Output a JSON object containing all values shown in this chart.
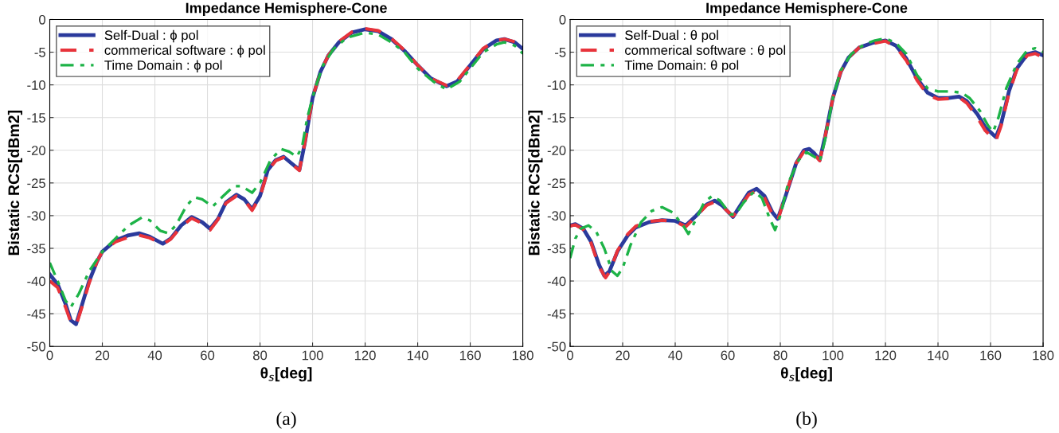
{
  "chart_data": [
    {
      "type": "line",
      "title": "Impedance Hemisphere-Cone",
      "xlabel": "θ$_{s}$[deg]",
      "ylabel": "Bistatic RCS[dBm2]",
      "xlim": [
        0,
        180
      ],
      "ylim": [
        -50,
        0
      ],
      "xticks": [
        0,
        20,
        40,
        60,
        80,
        100,
        120,
        140,
        160,
        180
      ],
      "yticks": [
        -50,
        -45,
        -40,
        -35,
        -30,
        -25,
        -20,
        -15,
        -10,
        -5,
        0
      ],
      "grid": true,
      "legend": "top left",
      "annotations": [
        "(a)"
      ],
      "series": [
        {
          "name": "Self-Dual : ϕ pol",
          "color": "#2b3a9c",
          "line_style": "solid",
          "x": [
            0,
            3,
            6,
            8,
            10,
            12,
            15,
            18,
            20,
            25,
            30,
            34,
            38,
            43,
            46,
            50,
            54,
            58,
            61,
            64,
            67,
            71,
            74,
            77,
            80,
            83,
            86,
            89,
            92,
            95,
            97,
            100,
            103,
            106,
            110,
            115,
            120,
            125,
            130,
            135,
            140,
            145,
            151,
            155,
            160,
            165,
            170,
            173,
            177,
            180
          ],
          "values": [
            -39,
            -40.5,
            -43.5,
            -46,
            -46.6,
            -44,
            -40,
            -37,
            -35.5,
            -33.8,
            -33,
            -32.7,
            -33.2,
            -34.3,
            -33.5,
            -31.5,
            -30.2,
            -31,
            -32,
            -30.5,
            -28,
            -26.8,
            -27.5,
            -29,
            -27,
            -23,
            -21.5,
            -21,
            -22,
            -23,
            -19,
            -12,
            -8,
            -5.5,
            -3.5,
            -2,
            -1.5,
            -1.8,
            -3,
            -4.8,
            -7,
            -9,
            -10.2,
            -9.5,
            -7,
            -4.5,
            -3.2,
            -3,
            -3.5,
            -4.5
          ]
        },
        {
          "name": "commerical software : ϕ pol",
          "color": "#e8333b",
          "line_style": "dashed",
          "x": [
            0,
            3,
            6,
            8,
            10,
            12,
            15,
            18,
            20,
            25,
            30,
            34,
            38,
            43,
            46,
            50,
            54,
            58,
            61,
            64,
            67,
            71,
            74,
            77,
            80,
            83,
            86,
            89,
            92,
            95,
            97,
            100,
            103,
            106,
            110,
            115,
            120,
            125,
            130,
            135,
            140,
            145,
            151,
            155,
            160,
            165,
            170,
            173,
            177,
            180
          ],
          "values": [
            -40,
            -41,
            -44,
            -46.3,
            -46.8,
            -44.3,
            -40.3,
            -37,
            -35.5,
            -34,
            -33.3,
            -33,
            -33.4,
            -34.4,
            -33.6,
            -31.7,
            -30.4,
            -31.2,
            -32.2,
            -30.6,
            -28.1,
            -27,
            -27.6,
            -29.2,
            -27.1,
            -23.1,
            -21.6,
            -21.1,
            -22.1,
            -23.1,
            -19,
            -12,
            -8,
            -5.5,
            -3.4,
            -1.9,
            -1.4,
            -1.7,
            -2.9,
            -4.7,
            -7,
            -9,
            -10.1,
            -9.4,
            -6.9,
            -4.4,
            -3.2,
            -3,
            -3.4,
            -4.4
          ]
        },
        {
          "name": "Time Domain : ϕ pol",
          "color": "#1db347",
          "line_style": "dashdot",
          "x": [
            0,
            3,
            6,
            8,
            11,
            15,
            20,
            25,
            30,
            35,
            38,
            42,
            45,
            48,
            52,
            55,
            58,
            62,
            66,
            70,
            73,
            77,
            80,
            84,
            88,
            91,
            94,
            96,
            98,
            101,
            104,
            108,
            113,
            120,
            125,
            130,
            135,
            140,
            146,
            151,
            156,
            160,
            165,
            170,
            173,
            177,
            180
          ],
          "values": [
            -37.2,
            -40,
            -43,
            -44,
            -42,
            -38.5,
            -35.5,
            -33.5,
            -31.5,
            -30.3,
            -30.7,
            -32.3,
            -32.7,
            -31.5,
            -28.5,
            -27.2,
            -27.5,
            -28.6,
            -27,
            -25.5,
            -25.5,
            -26.5,
            -25,
            -21.5,
            -19.8,
            -20.2,
            -21,
            -19.5,
            -15,
            -10.5,
            -7,
            -4.5,
            -2.8,
            -2,
            -2.3,
            -3.5,
            -5,
            -7.5,
            -9.5,
            -10.7,
            -9.5,
            -7.5,
            -5,
            -3.8,
            -3.5,
            -4,
            -5.2
          ]
        }
      ]
    },
    {
      "type": "line",
      "title": "Impedance Hemisphere-Cone",
      "xlabel": "θ$_{s}$[deg]",
      "ylabel": "Bistatic RCS[dBm2]",
      "xlim": [
        0,
        180
      ],
      "ylim": [
        -50,
        0
      ],
      "xticks": [
        0,
        20,
        40,
        60,
        80,
        100,
        120,
        140,
        160,
        180
      ],
      "yticks": [
        -50,
        -45,
        -40,
        -35,
        -30,
        -25,
        -20,
        -15,
        -10,
        -5,
        0
      ],
      "grid": true,
      "legend": "top left",
      "annotations": [
        "(b)"
      ],
      "series": [
        {
          "name": "Self-Dual : θ pol",
          "color": "#2b3a9c",
          "line_style": "solid",
          "x": [
            0,
            2,
            5,
            8,
            11,
            13,
            15,
            18,
            22,
            25,
            30,
            35,
            40,
            44,
            48,
            52,
            55,
            58,
            62,
            65,
            68,
            71,
            74,
            77,
            79,
            82,
            86,
            89,
            91,
            93,
            95,
            97,
            100,
            103,
            106,
            110,
            115,
            120,
            124,
            128,
            132,
            136,
            140,
            144,
            148,
            151,
            155,
            158,
            162,
            164,
            167,
            170,
            174,
            177,
            180
          ],
          "values": [
            -31.5,
            -31.3,
            -32,
            -34,
            -37.5,
            -39.2,
            -38.5,
            -35.5,
            -33,
            -31.8,
            -31,
            -30.7,
            -30.8,
            -31.5,
            -30,
            -28.3,
            -27.7,
            -28.5,
            -30.2,
            -28.3,
            -26.5,
            -25.9,
            -27,
            -29.5,
            -30.5,
            -27,
            -22,
            -20,
            -19.8,
            -20.5,
            -21.5,
            -18,
            -12,
            -8,
            -5.8,
            -4.3,
            -3.6,
            -3.2,
            -4,
            -6,
            -9,
            -11.2,
            -12,
            -12,
            -11.8,
            -12.5,
            -14.5,
            -16.5,
            -18,
            -16,
            -11,
            -7.5,
            -5.3,
            -5,
            -5.5
          ]
        },
        {
          "name": "commerical software : θ pol",
          "color": "#e8333b",
          "line_style": "dashed",
          "x": [
            0,
            2,
            5,
            8,
            11,
            13.5,
            15,
            18,
            22,
            25,
            30,
            35,
            40,
            44,
            48,
            52,
            55,
            58,
            62,
            65,
            68,
            71,
            74,
            77,
            79,
            82,
            86,
            89,
            91,
            93,
            95,
            97,
            100,
            103,
            106,
            110,
            115,
            120,
            124,
            128,
            132,
            136,
            140,
            144,
            148,
            151,
            155,
            158,
            162,
            164,
            167,
            170,
            174,
            177,
            180
          ],
          "values": [
            -31.6,
            -31.4,
            -32.1,
            -34.2,
            -37.8,
            -39.5,
            -38.6,
            -35.4,
            -32.8,
            -31.6,
            -30.9,
            -30.7,
            -30.9,
            -31.7,
            -30.1,
            -28.4,
            -27.9,
            -28.6,
            -30.1,
            -28.5,
            -26.8,
            -26.2,
            -27.3,
            -29.8,
            -30.8,
            -26.8,
            -22,
            -20.2,
            -20.1,
            -20.7,
            -21.6,
            -18,
            -12,
            -8,
            -5.8,
            -4.3,
            -3.7,
            -3.3,
            -4.2,
            -6.3,
            -9.3,
            -11.5,
            -12.2,
            -12.1,
            -11.9,
            -12.8,
            -15,
            -17,
            -18.6,
            -16.3,
            -11.3,
            -7.7,
            -5.5,
            -5.2,
            -5.8
          ]
        },
        {
          "name": "Time Domain: θ pol",
          "color": "#1db347",
          "line_style": "dashdot",
          "x": [
            0,
            2,
            4,
            7,
            10,
            13,
            16,
            18,
            20,
            23,
            27,
            31,
            35,
            39,
            43,
            45,
            48,
            51,
            54,
            57,
            61,
            63,
            66,
            70,
            73,
            76,
            78,
            80,
            83,
            87,
            90,
            93,
            95,
            97,
            100,
            103,
            107,
            112,
            116,
            120,
            124,
            128,
            132,
            136,
            140,
            145,
            149,
            152,
            156,
            159,
            161,
            163,
            166,
            170,
            174,
            177,
            180
          ],
          "values": [
            -36.5,
            -33.5,
            -32,
            -31.5,
            -32.5,
            -35,
            -38.5,
            -39.2,
            -38,
            -34.5,
            -31,
            -29.3,
            -28.7,
            -29.5,
            -31.5,
            -32.8,
            -30.5,
            -28,
            -27,
            -27.7,
            -29.8,
            -29.8,
            -28,
            -26.3,
            -27.3,
            -30.5,
            -32.2,
            -30,
            -25,
            -21.5,
            -20.3,
            -21,
            -21.7,
            -18.5,
            -12,
            -7.8,
            -5.3,
            -3.8,
            -3.2,
            -2.9,
            -3.6,
            -5.3,
            -8.5,
            -10.5,
            -11,
            -11,
            -11.2,
            -12,
            -14,
            -16.2,
            -17.2,
            -15,
            -10.5,
            -6.8,
            -4.7,
            -4.4,
            -5
          ]
        }
      ]
    }
  ]
}
